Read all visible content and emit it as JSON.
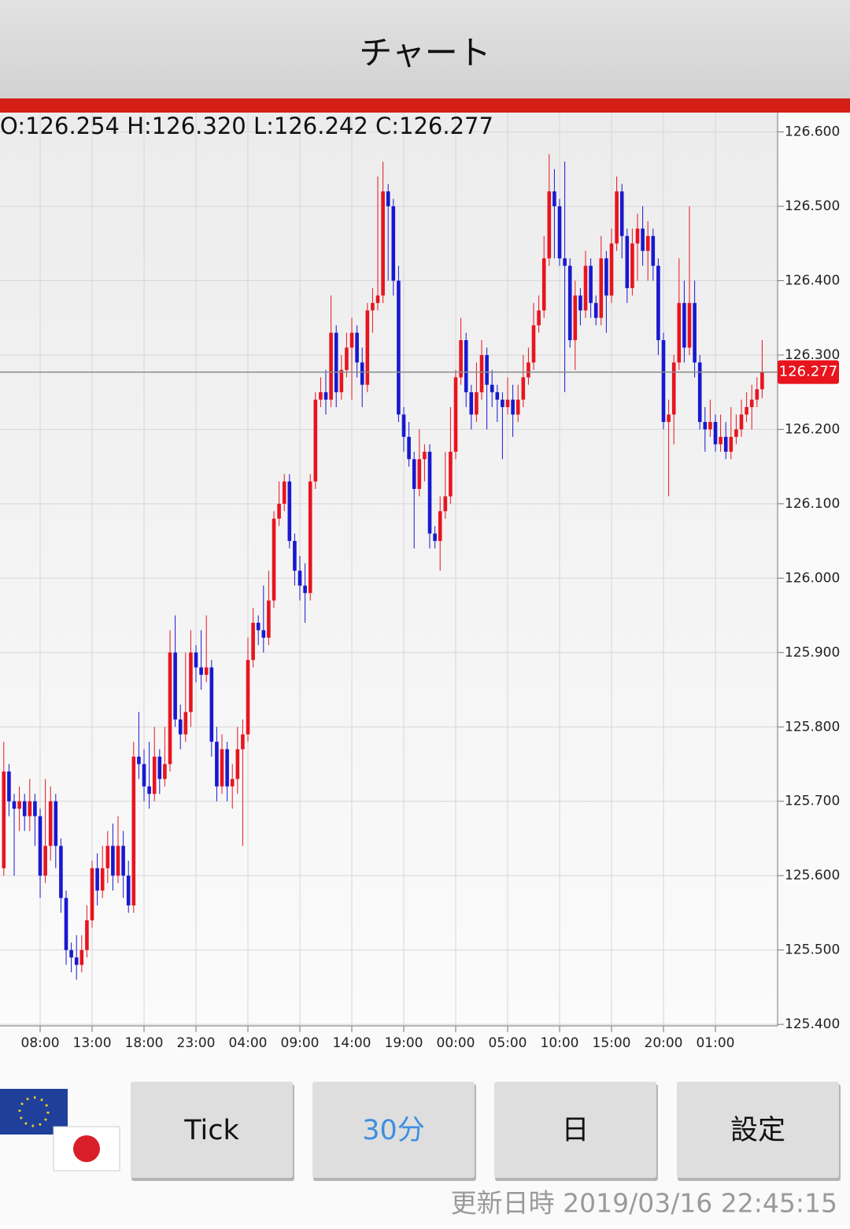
{
  "header": {
    "title": "チャート"
  },
  "chart_data": {
    "type": "candlestick",
    "ohlc_label": "O:126.254 H:126.320 L:126.242 C:126.277",
    "last_price": 126.277,
    "up_color": "#e8141e",
    "down_color": "#1818d0",
    "grid": true,
    "xlim": [
      -0.73,
      148.97
    ],
    "xticks": [
      {
        "value": 7,
        "label": "08:00"
      },
      {
        "value": 17,
        "label": "13:00"
      },
      {
        "value": 27,
        "label": "18:00"
      },
      {
        "value": 37,
        "label": "23:00"
      },
      {
        "value": 47,
        "label": "04:00"
      },
      {
        "value": 57,
        "label": "09:00"
      },
      {
        "value": 67,
        "label": "14:00"
      },
      {
        "value": 77,
        "label": "19:00"
      },
      {
        "value": 87,
        "label": "00:00"
      },
      {
        "value": 97,
        "label": "05:00"
      },
      {
        "value": 107,
        "label": "10:00"
      },
      {
        "value": 117,
        "label": "15:00"
      },
      {
        "value": 127,
        "label": "20:00"
      },
      {
        "value": 137,
        "label": "01:00"
      }
    ],
    "ylim": [
      125.398,
      126.626
    ],
    "yticks": [
      {
        "value": 125.4,
        "label": "125.400"
      },
      {
        "value": 125.5,
        "label": "125.500"
      },
      {
        "value": 125.6,
        "label": "125.600"
      },
      {
        "value": 125.7,
        "label": "125.700"
      },
      {
        "value": 125.8,
        "label": "125.800"
      },
      {
        "value": 125.9,
        "label": "125.900"
      },
      {
        "value": 126.0,
        "label": "126.000"
      },
      {
        "value": 126.1,
        "label": "126.100"
      },
      {
        "value": 126.2,
        "label": "126.200"
      },
      {
        "value": 126.3,
        "label": "126.300"
      },
      {
        "value": 126.4,
        "label": "126.400"
      },
      {
        "value": 126.5,
        "label": "126.500"
      },
      {
        "value": 126.6,
        "label": "126.600"
      }
    ],
    "open": [
      125.61,
      125.74,
      125.7,
      125.69,
      125.7,
      125.68,
      125.7,
      125.68,
      125.6,
      125.64,
      125.7,
      125.64,
      125.57,
      125.5,
      125.49,
      125.48,
      125.5,
      125.54,
      125.61,
      125.58,
      125.61,
      125.64,
      125.6,
      125.64,
      125.6,
      125.56,
      125.76,
      125.75,
      125.72,
      125.71,
      125.76,
      125.73,
      125.75,
      125.9,
      125.81,
      125.79,
      125.82,
      125.9,
      125.88,
      125.87,
      125.88,
      125.78,
      125.72,
      125.77,
      125.72,
      125.73,
      125.77,
      125.79,
      125.89,
      125.94,
      125.93,
      125.92,
      125.97,
      126.08,
      126.1,
      126.13,
      126.05,
      126.01,
      125.99,
      125.98,
      126.13,
      126.24,
      126.25,
      126.24,
      126.33,
      126.25,
      126.28,
      126.31,
      126.33,
      126.29,
      126.26,
      126.36,
      126.37,
      126.38,
      126.52,
      126.5,
      126.4,
      126.22,
      126.19,
      126.16,
      126.12,
      126.16,
      126.17,
      126.06,
      126.05,
      126.09,
      126.11,
      126.17,
      126.27,
      126.32,
      126.25,
      126.22,
      126.25,
      126.3,
      126.26,
      126.25,
      126.24,
      126.23,
      126.24,
      126.22,
      126.24,
      126.27,
      126.29,
      126.34,
      126.36,
      126.43,
      126.52,
      126.5,
      126.43,
      126.42,
      126.32,
      126.38,
      126.36,
      126.42,
      126.37,
      126.35,
      126.43,
      126.38,
      126.45,
      126.52,
      126.46,
      126.39,
      126.45,
      126.47,
      126.44,
      126.46,
      126.42,
      126.32,
      126.21,
      126.22,
      126.29,
      126.37,
      126.31,
      126.37,
      126.29,
      126.21,
      126.2,
      126.21,
      126.18,
      126.19,
      126.17,
      126.19,
      126.2,
      126.22,
      126.23,
      126.24,
      126.254
    ],
    "high": [
      125.78,
      125.75,
      125.71,
      125.72,
      125.71,
      125.73,
      125.71,
      125.69,
      125.73,
      125.72,
      125.71,
      125.65,
      125.58,
      125.51,
      125.52,
      125.52,
      125.56,
      125.62,
      125.63,
      125.64,
      125.66,
      125.67,
      125.68,
      125.66,
      125.62,
      125.78,
      125.82,
      125.77,
      125.78,
      125.8,
      125.77,
      125.8,
      125.93,
      125.95,
      125.83,
      125.9,
      125.93,
      125.91,
      125.93,
      125.95,
      125.89,
      125.8,
      125.79,
      125.78,
      125.75,
      125.8,
      125.81,
      125.92,
      125.96,
      125.95,
      125.99,
      126.01,
      126.09,
      126.13,
      126.14,
      126.14,
      126.06,
      126.03,
      126.02,
      126.14,
      126.25,
      126.27,
      126.28,
      126.38,
      126.34,
      126.3,
      126.33,
      126.35,
      126.34,
      126.31,
      126.37,
      126.39,
      126.54,
      126.56,
      126.53,
      126.51,
      126.42,
      126.23,
      126.21,
      126.17,
      126.2,
      126.18,
      126.18,
      126.07,
      126.11,
      126.17,
      126.23,
      126.28,
      126.35,
      126.33,
      126.26,
      126.29,
      126.32,
      126.31,
      126.28,
      126.26,
      126.25,
      126.27,
      126.26,
      126.26,
      126.3,
      126.31,
      126.37,
      126.38,
      126.46,
      126.57,
      126.55,
      126.51,
      126.56,
      126.43,
      126.4,
      126.39,
      126.44,
      126.43,
      126.38,
      126.46,
      126.44,
      126.47,
      126.54,
      126.53,
      126.47,
      126.47,
      126.49,
      126.5,
      126.48,
      126.47,
      126.43,
      126.33,
      126.24,
      126.3,
      126.43,
      126.4,
      126.5,
      126.4,
      126.3,
      126.23,
      126.24,
      126.22,
      126.22,
      126.21,
      126.23,
      126.22,
      126.24,
      126.25,
      126.26,
      126.27,
      126.32
    ],
    "low": [
      125.6,
      125.68,
      125.6,
      125.66,
      125.66,
      125.66,
      125.64,
      125.57,
      125.59,
      125.62,
      125.61,
      125.55,
      125.48,
      125.47,
      125.46,
      125.47,
      125.49,
      125.53,
      125.56,
      125.57,
      125.59,
      125.58,
      125.59,
      125.57,
      125.55,
      125.55,
      125.73,
      125.7,
      125.69,
      125.7,
      125.71,
      125.72,
      125.74,
      125.8,
      125.77,
      125.78,
      125.8,
      125.86,
      125.85,
      125.86,
      125.76,
      125.7,
      125.71,
      125.7,
      125.69,
      125.71,
      125.64,
      125.78,
      125.88,
      125.91,
      125.9,
      125.91,
      125.96,
      126.07,
      126.09,
      126.04,
      125.99,
      125.97,
      125.94,
      125.97,
      126.12,
      126.23,
      126.22,
      126.23,
      126.23,
      126.24,
      126.27,
      126.24,
      126.27,
      126.23,
      126.25,
      126.33,
      126.36,
      126.37,
      126.4,
      126.38,
      126.21,
      126.17,
      126.15,
      126.04,
      126.11,
      126.13,
      126.04,
      126.04,
      126.01,
      126.08,
      126.1,
      126.16,
      126.26,
      126.23,
      126.2,
      126.21,
      126.24,
      126.2,
      126.23,
      126.21,
      126.16,
      126.22,
      126.19,
      126.21,
      126.23,
      126.26,
      126.28,
      126.33,
      126.35,
      126.42,
      126.43,
      126.42,
      126.25,
      126.31,
      126.28,
      126.34,
      126.35,
      126.35,
      126.34,
      126.34,
      126.33,
      126.37,
      126.44,
      126.43,
      126.37,
      126.38,
      126.4,
      126.42,
      126.4,
      126.4,
      126.3,
      126.2,
      126.11,
      126.18,
      126.28,
      126.29,
      126.3,
      126.27,
      126.2,
      126.17,
      126.19,
      126.17,
      126.17,
      126.16,
      126.16,
      126.18,
      126.19,
      126.21,
      126.2,
      126.23,
      126.242
    ],
    "close": [
      125.74,
      125.7,
      125.69,
      125.7,
      125.68,
      125.7,
      125.68,
      125.6,
      125.64,
      125.7,
      125.64,
      125.57,
      125.5,
      125.49,
      125.48,
      125.5,
      125.54,
      125.61,
      125.58,
      125.61,
      125.64,
      125.6,
      125.64,
      125.6,
      125.56,
      125.76,
      125.75,
      125.72,
      125.71,
      125.76,
      125.73,
      125.75,
      125.9,
      125.81,
      125.79,
      125.82,
      125.9,
      125.88,
      125.87,
      125.88,
      125.78,
      125.72,
      125.77,
      125.72,
      125.73,
      125.77,
      125.79,
      125.89,
      125.94,
      125.93,
      125.92,
      125.97,
      126.08,
      126.1,
      126.13,
      126.05,
      126.01,
      125.99,
      125.98,
      126.13,
      126.24,
      126.25,
      126.24,
      126.33,
      126.25,
      126.28,
      126.31,
      126.33,
      126.29,
      126.26,
      126.36,
      126.37,
      126.38,
      126.52,
      126.5,
      126.4,
      126.22,
      126.19,
      126.16,
      126.12,
      126.16,
      126.17,
      126.06,
      126.05,
      126.09,
      126.11,
      126.17,
      126.27,
      126.32,
      126.25,
      126.22,
      126.25,
      126.3,
      126.26,
      126.25,
      126.24,
      126.23,
      126.24,
      126.22,
      126.24,
      126.27,
      126.29,
      126.34,
      126.36,
      126.43,
      126.52,
      126.5,
      126.43,
      126.42,
      126.32,
      126.38,
      126.36,
      126.42,
      126.37,
      126.35,
      126.43,
      126.38,
      126.45,
      126.52,
      126.46,
      126.39,
      126.45,
      126.47,
      126.44,
      126.46,
      126.42,
      126.32,
      126.21,
      126.22,
      126.29,
      126.37,
      126.31,
      126.37,
      126.29,
      126.21,
      126.2,
      126.21,
      126.18,
      126.19,
      126.17,
      126.19,
      126.2,
      126.22,
      126.23,
      126.24,
      126.254,
      126.277
    ]
  },
  "buttons": [
    "Tick",
    "30分",
    "日",
    "設定"
  ],
  "updated": "更新日時 2019/03/16 22:45:15"
}
